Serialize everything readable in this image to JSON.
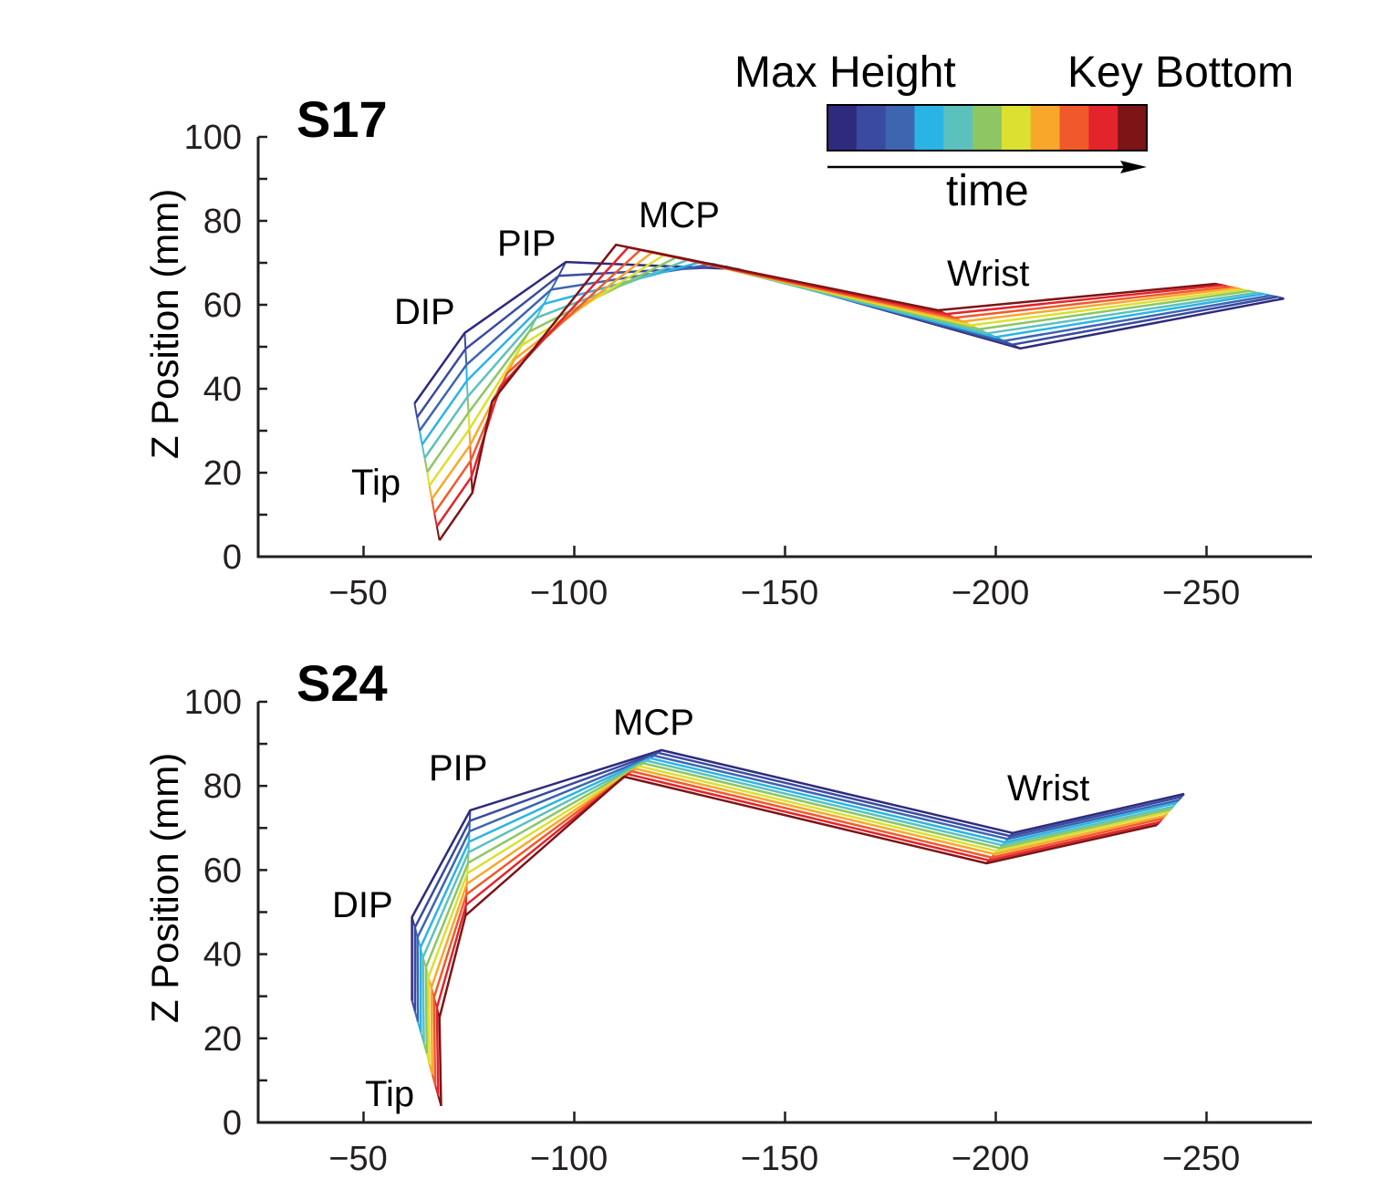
{
  "legend": {
    "left_label": "Max Height",
    "right_label": "Key Bottom",
    "arrow_label": "time",
    "colors": [
      "#2e2b7d",
      "#3a4aa0",
      "#3d65b0",
      "#2ab4e6",
      "#5cc1bd",
      "#8dc663",
      "#dce030",
      "#f9a72b",
      "#f05a2b",
      "#e3242b",
      "#7d1416"
    ]
  },
  "chart_data": [
    {
      "type": "line",
      "title": "S17",
      "xlabel": "",
      "ylabel": "Z Position (mm)",
      "xlim": [
        -25,
        -275
      ],
      "ylim": [
        0,
        100
      ],
      "xticks": [
        -50,
        -100,
        -150,
        -200,
        -250
      ],
      "xtick_labels": [
        "−50",
        "−100",
        "−150",
        "−200",
        "−250"
      ],
      "yticks": [
        0,
        20,
        40,
        60,
        80,
        100
      ],
      "ytick_labels": [
        "0",
        "20",
        "40",
        "60",
        "80",
        "100"
      ],
      "annotations": [
        "Tip",
        "DIP",
        "PIP",
        "MCP",
        "Wrist"
      ],
      "joints": [
        {
          "name": "Tip",
          "x": [
            -62.1,
            -62.7,
            -63.3,
            -63.9,
            -64.5,
            -65.1,
            -65.6,
            -66.2,
            -66.8,
            -67.4,
            -68.0
          ],
          "y": [
            36.5,
            33.2,
            30.0,
            26.7,
            23.5,
            20.2,
            16.9,
            13.7,
            10.4,
            7.2,
            3.9
          ]
        },
        {
          "name": "DIP",
          "x": [
            -74.0,
            -74.2,
            -74.4,
            -74.5,
            -74.7,
            -74.9,
            -75.1,
            -75.3,
            -75.4,
            -75.6,
            -75.8
          ],
          "y": [
            53.3,
            49.5,
            45.7,
            41.9,
            38.1,
            34.3,
            30.4,
            26.6,
            22.8,
            19.0,
            15.2
          ]
        },
        {
          "name": "PIP",
          "x": [
            -98.0,
            -96.3,
            -94.5,
            -92.8,
            -91.0,
            -89.3,
            -87.5,
            -85.8,
            -84.0,
            -82.3,
            -80.5
          ],
          "y": [
            70.2,
            66.9,
            63.6,
            60.2,
            56.9,
            53.6,
            50.3,
            47.0,
            43.6,
            40.3,
            37.0
          ]
        },
        {
          "name": "MCP",
          "x": [
            -138.8,
            -135.9,
            -133.0,
            -130.1,
            -127.2,
            -124.4,
            -121.5,
            -118.6,
            -115.7,
            -112.8,
            -109.9
          ],
          "y": [
            68.5,
            69.1,
            69.7,
            70.2,
            70.8,
            71.4,
            72.0,
            72.6,
            73.1,
            73.7,
            74.3
          ]
        },
        {
          "name": "Wrist",
          "x": [
            -205.8,
            -203.9,
            -201.9,
            -200.0,
            -198.0,
            -196.1,
            -194.1,
            -192.2,
            -190.2,
            -188.3,
            -186.3
          ],
          "y": [
            49.6,
            50.5,
            51.4,
            52.3,
            53.2,
            54.2,
            55.1,
            56.0,
            56.9,
            57.8,
            58.7
          ]
        },
        {
          "name": "Forearm",
          "x": [
            -268.4,
            -266.8,
            -265.2,
            -263.5,
            -261.9,
            -260.3,
            -258.7,
            -257.1,
            -255.4,
            -253.8,
            -252.2
          ],
          "y": [
            61.5,
            61.9,
            62.2,
            62.6,
            62.9,
            63.3,
            63.6,
            64.0,
            64.3,
            64.7,
            65.0
          ]
        }
      ]
    },
    {
      "type": "line",
      "title": "S24",
      "xlabel": "",
      "ylabel": "Z Position (mm)",
      "xlim": [
        -25,
        -275
      ],
      "ylim": [
        0,
        100
      ],
      "xticks": [
        -50,
        -100,
        -150,
        -200,
        -250
      ],
      "xtick_labels": [
        "−50",
        "−100",
        "−150",
        "−200",
        "−250"
      ],
      "yticks": [
        0,
        20,
        40,
        60,
        80,
        100
      ],
      "ytick_labels": [
        "0",
        "20",
        "40",
        "60",
        "80",
        "100"
      ],
      "annotations": [
        "Tip",
        "DIP",
        "PIP",
        "MCP",
        "Wrist"
      ],
      "joints": [
        {
          "name": "Tip",
          "x": [
            -61.5,
            -62.2,
            -62.9,
            -63.6,
            -64.3,
            -65.0,
            -65.6,
            -66.3,
            -67.0,
            -67.7,
            -68.4
          ],
          "y": [
            28.9,
            26.4,
            23.9,
            21.4,
            18.9,
            16.4,
            13.9,
            11.4,
            8.9,
            6.4,
            3.9
          ]
        },
        {
          "name": "DIP",
          "x": [
            -61.5,
            -62.2,
            -62.8,
            -63.5,
            -64.1,
            -64.8,
            -65.4,
            -66.1,
            -66.7,
            -67.4,
            -68.0
          ],
          "y": [
            48.8,
            46.4,
            44.0,
            41.6,
            39.2,
            36.9,
            34.5,
            32.1,
            29.7,
            27.3,
            24.9
          ]
        },
        {
          "name": "PIP",
          "x": [
            -75.3,
            -75.2,
            -75.1,
            -75.0,
            -74.9,
            -74.8,
            -74.6,
            -74.5,
            -74.4,
            -74.3,
            -74.2
          ],
          "y": [
            74.2,
            71.7,
            69.2,
            66.7,
            64.2,
            61.7,
            59.2,
            56.7,
            54.2,
            51.7,
            49.2
          ]
        },
        {
          "name": "MCP",
          "x": [
            -120.7,
            -119.8,
            -118.9,
            -118.0,
            -117.1,
            -116.3,
            -115.4,
            -114.5,
            -113.6,
            -112.7,
            -111.8
          ],
          "y": [
            88.5,
            87.9,
            87.2,
            86.6,
            86.0,
            85.4,
            84.7,
            84.1,
            83.5,
            82.8,
            82.2
          ]
        },
        {
          "name": "Wrist",
          "x": [
            -204.0,
            -203.4,
            -202.8,
            -202.1,
            -201.5,
            -200.9,
            -200.3,
            -199.7,
            -199.0,
            -198.4,
            -197.8
          ],
          "y": [
            68.8,
            68.1,
            67.4,
            66.6,
            65.9,
            65.2,
            64.5,
            63.8,
            63.0,
            62.3,
            61.6
          ]
        },
        {
          "name": "Forearm",
          "x": [
            -244.7,
            -244.1,
            -243.4,
            -242.7,
            -242.1,
            -241.5,
            -240.8,
            -240.2,
            -239.5,
            -238.9,
            -238.2
          ],
          "y": [
            78.1,
            77.4,
            76.6,
            75.9,
            75.1,
            74.4,
            73.7,
            72.9,
            72.2,
            71.4,
            70.7
          ]
        }
      ]
    }
  ]
}
